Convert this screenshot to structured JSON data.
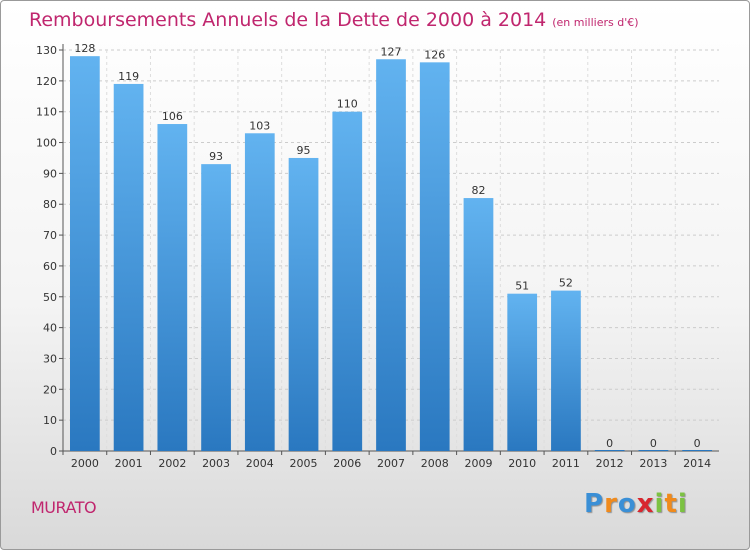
{
  "header": {
    "title": "Remboursements Annuels de la Dette de 2000 à 2014",
    "unit": "(en milliers d'€)"
  },
  "footer": {
    "commune": "MURATO",
    "logo_letters": [
      "P",
      "r",
      "o",
      "x",
      "i",
      "t",
      "i"
    ],
    "logo_colors": [
      "#3a8fd6",
      "#f08a1c",
      "#3a8fd6",
      "#d8262e",
      "#7cc242",
      "#f08a1c",
      "#7cc242"
    ]
  },
  "chart_data": {
    "type": "bar",
    "title": "Remboursements Annuels de la Dette de 2000 à 2014",
    "subtitle": "(en milliers d'€)",
    "categories": [
      "2000",
      "2001",
      "2002",
      "2003",
      "2004",
      "2005",
      "2006",
      "2007",
      "2008",
      "2009",
      "2010",
      "2011",
      "2012",
      "2013",
      "2014"
    ],
    "values": [
      128,
      119,
      106,
      93,
      103,
      95,
      110,
      127,
      126,
      82,
      51,
      52,
      0,
      0,
      0
    ],
    "value_labels": [
      "128",
      "119",
      "106",
      "93",
      "103",
      "95",
      "110",
      "127",
      "126",
      "82",
      "51",
      "52",
      "0",
      "0",
      "0"
    ],
    "ylim": [
      0,
      130
    ],
    "yticks": [
      0,
      10,
      20,
      30,
      40,
      50,
      60,
      70,
      80,
      90,
      100,
      110,
      120,
      130
    ],
    "grid": true,
    "bar_color": "#3d8fd9"
  }
}
